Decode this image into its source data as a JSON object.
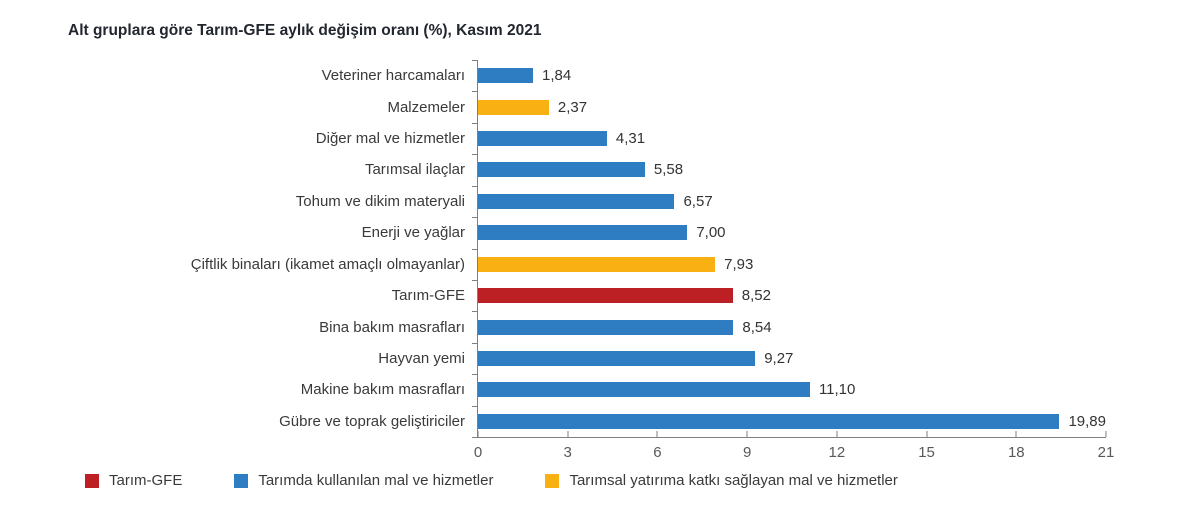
{
  "chart_data": {
    "type": "bar",
    "orientation": "horizontal",
    "title": "Alt gruplara göre Tarım-GFE aylık değişim oranı (%), Kasım 2021",
    "xlabel": "",
    "ylabel": "",
    "xlim": [
      0,
      21
    ],
    "x_ticks": [
      0,
      3,
      6,
      9,
      12,
      15,
      18,
      21
    ],
    "grid": false,
    "legend_position": "bottom",
    "colors": {
      "gfe": "#bc2025",
      "goods": "#2e7cc1",
      "investment": "#f8b013"
    },
    "bars": [
      {
        "label": "Veteriner harcamaları",
        "value": 1.84,
        "display": "1,84",
        "group": "goods"
      },
      {
        "label": "Malzemeler",
        "value": 2.37,
        "display": "2,37",
        "group": "investment"
      },
      {
        "label": "Diğer mal ve hizmetler",
        "value": 4.31,
        "display": "4,31",
        "group": "goods"
      },
      {
        "label": "Tarımsal ilaçlar",
        "value": 5.58,
        "display": "5,58",
        "group": "goods"
      },
      {
        "label": "Tohum ve dikim materyali",
        "value": 6.57,
        "display": "6,57",
        "group": "goods"
      },
      {
        "label": "Enerji ve yağlar",
        "value": 7.0,
        "display": "7,00",
        "group": "goods"
      },
      {
        "label": "Çiftlik binaları (ikamet amaçlı olmayanlar)",
        "value": 7.93,
        "display": "7,93",
        "group": "investment"
      },
      {
        "label": "Tarım-GFE",
        "value": 8.52,
        "display": "8,52",
        "group": "gfe"
      },
      {
        "label": "Bina bakım masrafları",
        "value": 8.54,
        "display": "8,54",
        "group": "goods"
      },
      {
        "label": "Hayvan yemi",
        "value": 9.27,
        "display": "9,27",
        "group": "goods"
      },
      {
        "label": "Makine bakım masrafları",
        "value": 11.1,
        "display": "11,10",
        "group": "goods"
      },
      {
        "label": "Gübre ve toprak geliştiriciler",
        "value": 19.89,
        "display": "19,89",
        "group": "goods"
      }
    ],
    "legend": [
      {
        "label": "Tarım-GFE",
        "group": "gfe"
      },
      {
        "label": "Tarımda kullanılan mal ve hizmetler",
        "group": "goods"
      },
      {
        "label": "Tarımsal yatırıma katkı sağlayan mal ve hizmetler",
        "group": "investment"
      }
    ]
  }
}
